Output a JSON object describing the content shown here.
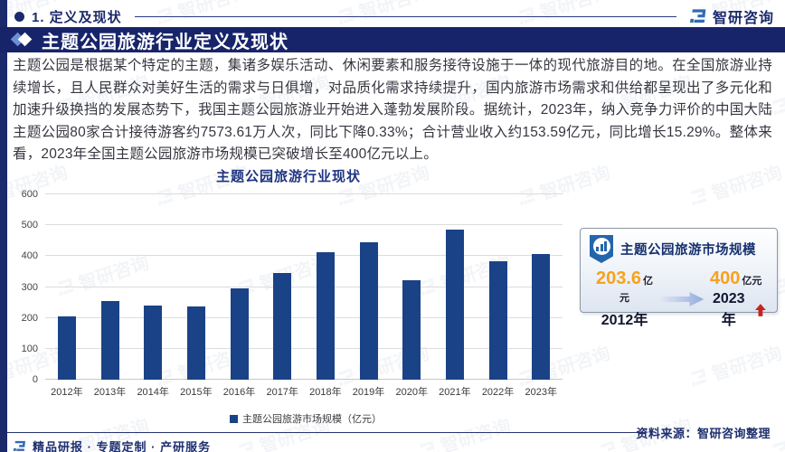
{
  "brand": {
    "name": "智研咨询"
  },
  "header": {
    "section_title": "1. 定义及现状"
  },
  "title_bar": {
    "title": "主题公园旅游行业定义及现状"
  },
  "paragraph": "主题公园是根据某个特定的主题，集诸多娱乐活动、休闲要素和服务接待设施于一体的现代旅游目的地。在全国旅游业持续增长，且人民群众对美好生活的需求与日俱增，对品质化需求持续提升，国内旅游市场需求和供给都呈现出了多元化和加速升级换挡的发展态势下，我国主题公园旅游业开始进入蓬勃发展阶段。据统计，2023年，纳入竞争力评价的中国大陆主题公园80家合计接待游客约7573.61万人次，同比下降0.33%；合计营业收入约153.59亿元，同比增长15.29%。整体来看，2023年全国主题公园旅游市场规模已突破增长至400亿元以上。",
  "chart_data": {
    "type": "bar",
    "title": "主题公园旅游行业现状",
    "categories": [
      "2012年",
      "2013年",
      "2014年",
      "2015年",
      "2016年",
      "2017年",
      "2018年",
      "2019年",
      "2020年",
      "2021年",
      "2022年",
      "2023年"
    ],
    "values": [
      203.6,
      256,
      240,
      237,
      297,
      344,
      414,
      445,
      323,
      485,
      382,
      407
    ],
    "legend": "主题公园旅游市场规模（亿元）",
    "xlabel": "",
    "ylabel": "",
    "ylim": [
      0,
      600
    ],
    "ytick_step": 100,
    "grid": true,
    "legend_position": "bottom",
    "bar_color": "#1a4286"
  },
  "infobox": {
    "title": "主题公园旅游市场规模",
    "from": {
      "value": "203.6",
      "unit": "亿元",
      "year": "2012年"
    },
    "to": {
      "value": "400",
      "unit": "亿元",
      "year": "2023年"
    }
  },
  "footer": {
    "services": "精品研报 · 专题定制 · 产研服务",
    "source": "资料来源：智研咨询整理"
  },
  "colors": {
    "navy": "#17246a",
    "bar": "#1a4286",
    "orange": "#f6a21d",
    "red": "#c9231d"
  }
}
